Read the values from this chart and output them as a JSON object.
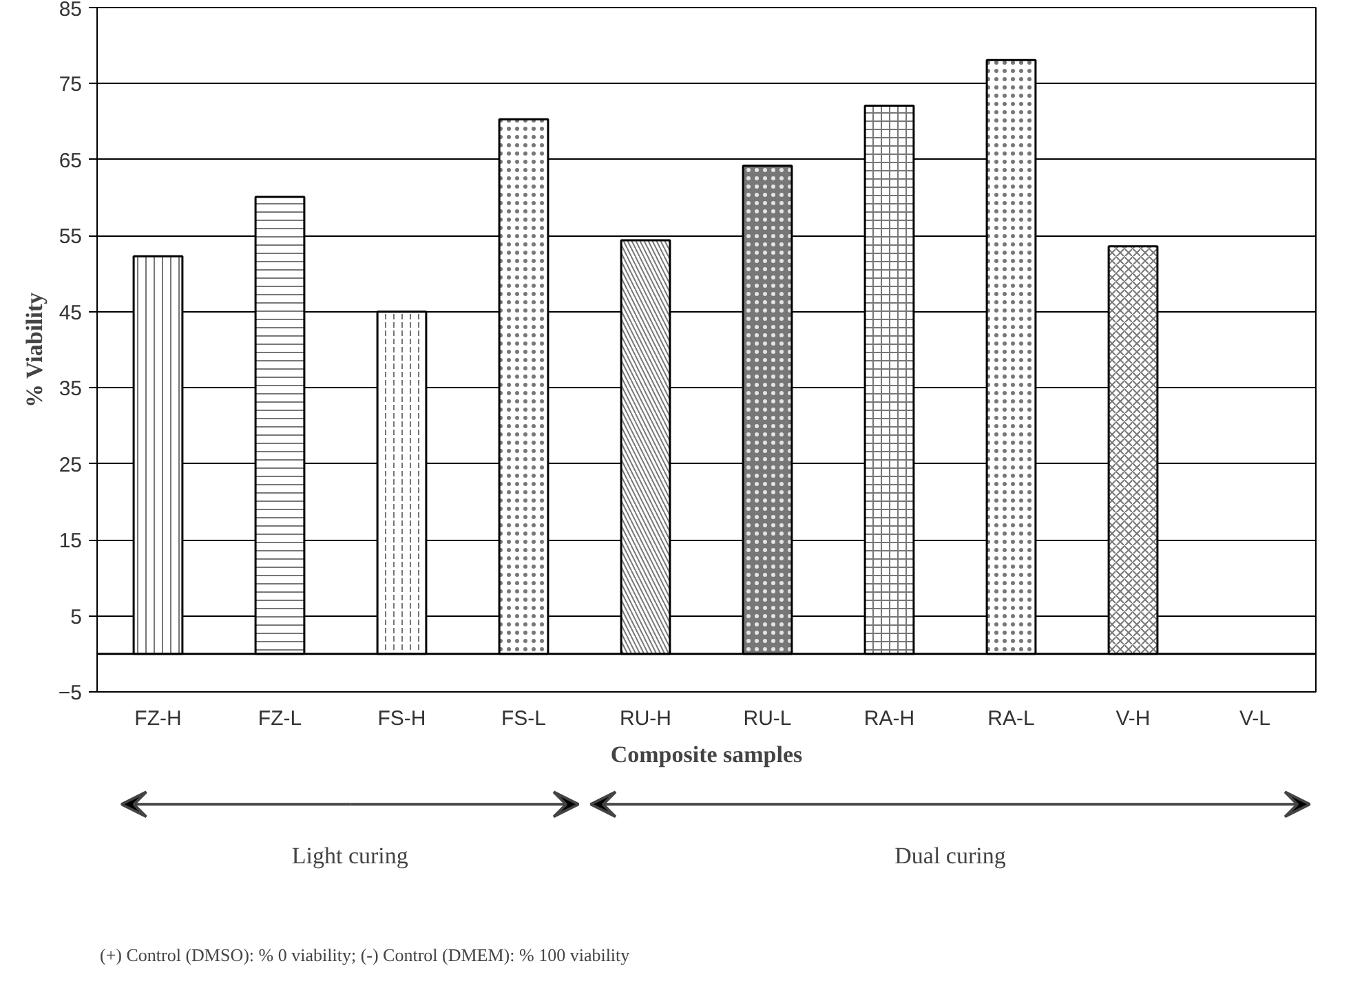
{
  "chart_data": {
    "type": "bar",
    "xlabel": "Composite samples",
    "ylabel": "% Viability",
    "categories": [
      "FZ-H",
      "FZ-L",
      "FS-H",
      "FS-L",
      "RU-H",
      "RU-L",
      "RA-H",
      "RA-L",
      "V-H",
      "V-L"
    ],
    "values": [
      52.3,
      60.1,
      45,
      70.3,
      54.4,
      64.2,
      72.1,
      78.1,
      53.6,
      0
    ],
    "colors": [
      "#ffffff",
      "#ffffff",
      "#ffffff",
      "#ffffff",
      "#ffffff",
      "#777777",
      "#ffffff",
      "#ffffff",
      "#ffffff",
      "#ffffff"
    ],
    "ylim": [
      -5,
      85
    ],
    "yticks": [
      -5,
      5,
      15,
      25,
      35,
      45,
      55,
      65,
      75,
      85
    ],
    "grid": "y",
    "ref_lines": [
      {
        "axis": "y",
        "value": 0
      }
    ],
    "annotations": [
      "Light curing",
      "Dual curing",
      "(+) Control (DMSO): % 0 viability;  (-) Control (DMEM): % 100 viability"
    ]
  }
}
